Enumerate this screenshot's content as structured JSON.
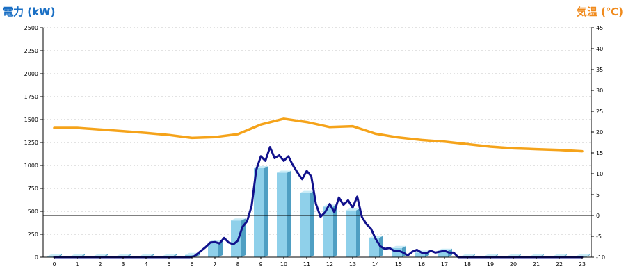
{
  "chart_data": {
    "type": "bar+line",
    "left_axis_label": "電力 (kW)",
    "right_axis_label": "気温 (℃)",
    "left_ylim": [
      0,
      2500
    ],
    "right_ylim": [
      -10,
      45
    ],
    "left_ticks": [
      "0",
      "250",
      "500",
      "750",
      "1000",
      "1250",
      "1500",
      "1750",
      "2000",
      "2250",
      "2500"
    ],
    "right_ticks": [
      "-10",
      "-5",
      "0",
      "5",
      "10",
      "15",
      "20",
      "25",
      "30",
      "35",
      "40",
      "45"
    ],
    "categories": [
      "0",
      "1",
      "2",
      "3",
      "4",
      "5",
      "6",
      "7",
      "8",
      "9",
      "10",
      "11",
      "12",
      "13",
      "14",
      "15",
      "16",
      "17",
      "18",
      "19",
      "20",
      "21",
      "22",
      "23"
    ],
    "grid": "horizontal-dashed",
    "hourly_power_bars": [
      10,
      10,
      10,
      10,
      10,
      10,
      25,
      160,
      400,
      970,
      920,
      700,
      550,
      510,
      210,
      100,
      50,
      70,
      8,
      8,
      8,
      8,
      8,
      8
    ],
    "realtime_power_line": {
      "x": [
        0,
        5.9,
        6.1,
        6.3,
        6.6,
        6.8,
        7.0,
        7.2,
        7.4,
        7.6,
        7.8,
        8.0,
        8.2,
        8.4,
        8.6,
        8.8,
        9.0,
        9.2,
        9.4,
        9.6,
        9.8,
        10.0,
        10.2,
        10.4,
        10.6,
        10.8,
        11.0,
        11.2,
        11.4,
        11.6,
        11.8,
        12.0,
        12.2,
        12.4,
        12.6,
        12.8,
        13.0,
        13.2,
        13.4,
        13.6,
        13.8,
        14.0,
        14.2,
        14.4,
        14.6,
        14.8,
        15.0,
        15.2,
        15.4,
        15.6,
        15.8,
        16.0,
        16.2,
        16.4,
        16.6,
        16.8,
        17.0,
        17.2,
        17.4,
        17.6,
        17.8,
        23
      ],
      "y": [
        0,
        0,
        10,
        50,
        110,
        160,
        165,
        150,
        210,
        160,
        140,
        180,
        330,
        390,
        560,
        950,
        1100,
        1050,
        1200,
        1080,
        1110,
        1050,
        1100,
        1000,
        920,
        850,
        940,
        880,
        580,
        440,
        490,
        580,
        490,
        650,
        570,
        620,
        540,
        660,
        440,
        360,
        310,
        200,
        120,
        90,
        100,
        70,
        70,
        50,
        20,
        60,
        80,
        50,
        40,
        70,
        50,
        60,
        70,
        50,
        50,
        0,
        0,
        0
      ]
    },
    "temperature_line": {
      "x": [
        0,
        1,
        2,
        3,
        4,
        5,
        6,
        7,
        8,
        9,
        10,
        11,
        12,
        13,
        14,
        15,
        16,
        17,
        18,
        19,
        20,
        21,
        22,
        23
      ],
      "y": [
        21,
        21,
        20.6,
        20.2,
        19.8,
        19.3,
        18.6,
        18.8,
        19.5,
        21.8,
        23.2,
        22.4,
        21.2,
        21.4,
        19.6,
        18.7,
        18.1,
        17.7,
        17.1,
        16.5,
        16.1,
        15.9,
        15.7,
        15.4
      ]
    },
    "colors": {
      "left_axis_label": "#1a6fc4",
      "right_axis_label": "#f08a1c",
      "bar_front": "#8fd0ea",
      "bar_side": "#4f9fc3",
      "bar_top": "#c9ecf7",
      "power_line": "#11118c",
      "temperature_line": "#f5a31a"
    }
  }
}
